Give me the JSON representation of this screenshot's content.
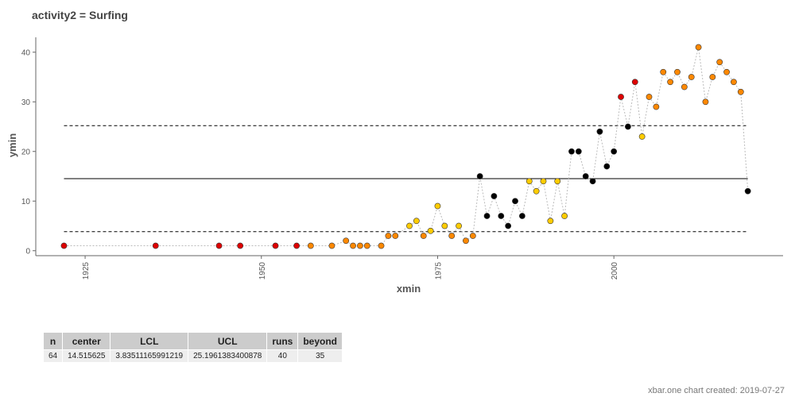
{
  "title": "activity2 = Surfing",
  "chart_data": {
    "type": "scatter",
    "title": "activity2 = Surfing",
    "xlabel": "xmin",
    "ylabel": "ymin",
    "xlim": [
      1918,
      2024
    ],
    "ylim": [
      -1,
      43
    ],
    "xticks": [
      1925,
      1950,
      1975,
      2000
    ],
    "yticks": [
      0,
      10,
      20,
      30,
      40
    ],
    "center": 14.515625,
    "lcl": 3.83511165991219,
    "ucl": 25.1961383400878,
    "colors": {
      "red": "#dd0000",
      "orange": "#ff8800",
      "yellow": "#ffcc00",
      "black": "#000000"
    },
    "series": [
      {
        "x": [
          1922,
          1935,
          1944,
          1947,
          1952,
          1955,
          1957,
          1960,
          1962,
          1963,
          1964,
          1965,
          1967,
          1968,
          1969,
          1971,
          1972,
          1973,
          1974,
          1975,
          1976,
          1977,
          1978,
          1979,
          1980,
          1981,
          1982,
          1983,
          1984,
          1985,
          1986,
          1987,
          1988,
          1989,
          1990,
          1991,
          1992,
          1993,
          1994,
          1995,
          1996,
          1997,
          1998,
          1999,
          2000,
          2001,
          2002,
          2003,
          2004,
          2005,
          2006,
          2007,
          2008,
          2009,
          2010,
          2011,
          2012,
          2013,
          2014,
          2015,
          2016,
          2017,
          2018,
          2019
        ],
        "y": [
          1,
          1,
          1,
          1,
          1,
          1,
          1,
          1,
          2,
          1,
          1,
          1,
          1,
          3,
          3,
          5,
          6,
          3,
          4,
          9,
          5,
          3,
          5,
          2,
          3,
          15,
          7,
          11,
          7,
          5,
          10,
          7,
          14,
          12,
          14,
          6,
          14,
          7,
          20,
          20,
          15,
          14,
          24,
          17,
          20,
          31,
          25,
          34,
          23,
          31,
          29,
          36,
          34,
          36,
          33,
          35,
          41,
          30,
          35,
          38,
          36,
          34,
          32,
          12
        ],
        "c": [
          "red",
          "red",
          "red",
          "red",
          "red",
          "red",
          "orange",
          "orange",
          "orange",
          "orange",
          "orange",
          "orange",
          "orange",
          "orange",
          "orange",
          "yellow",
          "yellow",
          "orange",
          "yellow",
          "yellow",
          "yellow",
          "orange",
          "yellow",
          "orange",
          "orange",
          "black",
          "black",
          "black",
          "black",
          "black",
          "black",
          "black",
          "yellow",
          "yellow",
          "yellow",
          "yellow",
          "yellow",
          "yellow",
          "black",
          "black",
          "black",
          "black",
          "black",
          "black",
          "black",
          "red",
          "black",
          "red",
          "yellow",
          "orange",
          "orange",
          "orange",
          "orange",
          "orange",
          "orange",
          "orange",
          "orange",
          "orange",
          "orange",
          "orange",
          "orange",
          "orange",
          "orange",
          "black"
        ]
      }
    ]
  },
  "stats": {
    "headers": [
      "n",
      "center",
      "LCL",
      "UCL",
      "runs",
      "beyond"
    ],
    "values": [
      "64",
      "14.515625",
      "3.83511165991219",
      "25.1961383400878",
      "40",
      "35"
    ]
  },
  "footer": "xbar.one chart created: 2019-07-27"
}
